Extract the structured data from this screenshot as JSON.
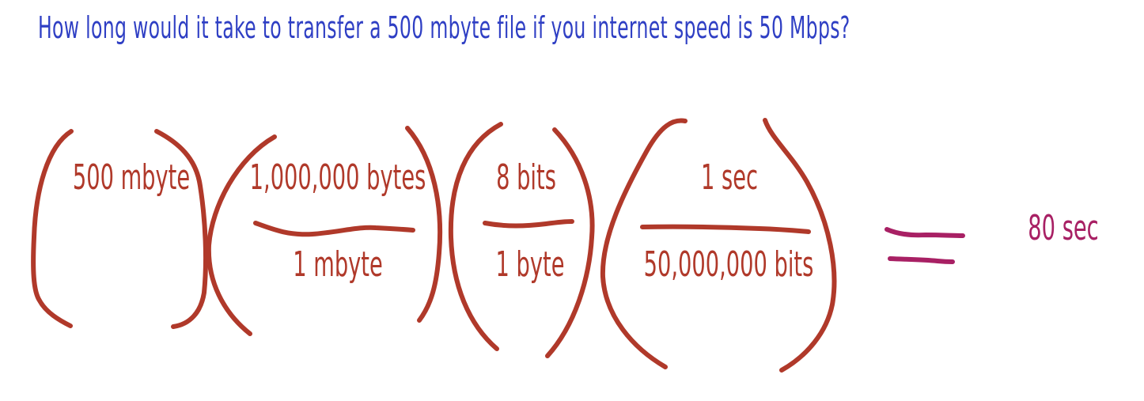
{
  "question": "How long would it take to transfer a 500 mbyte file if you internet speed is 50 Mbps?",
  "equation": {
    "factors": [
      {
        "numerator": "500 mbyte",
        "denominator": ""
      },
      {
        "numerator": "1,000,000 bytes",
        "denominator": "1 mbyte"
      },
      {
        "numerator": "8 bits",
        "denominator": "1 byte"
      },
      {
        "numerator": "1 sec",
        "denominator": "50,000,000 bits"
      }
    ],
    "result": "80 sec"
  },
  "colors": {
    "question": "#2f3fc4",
    "ink": "#b0392a",
    "result": "#a82064",
    "background": "#ffffff"
  }
}
